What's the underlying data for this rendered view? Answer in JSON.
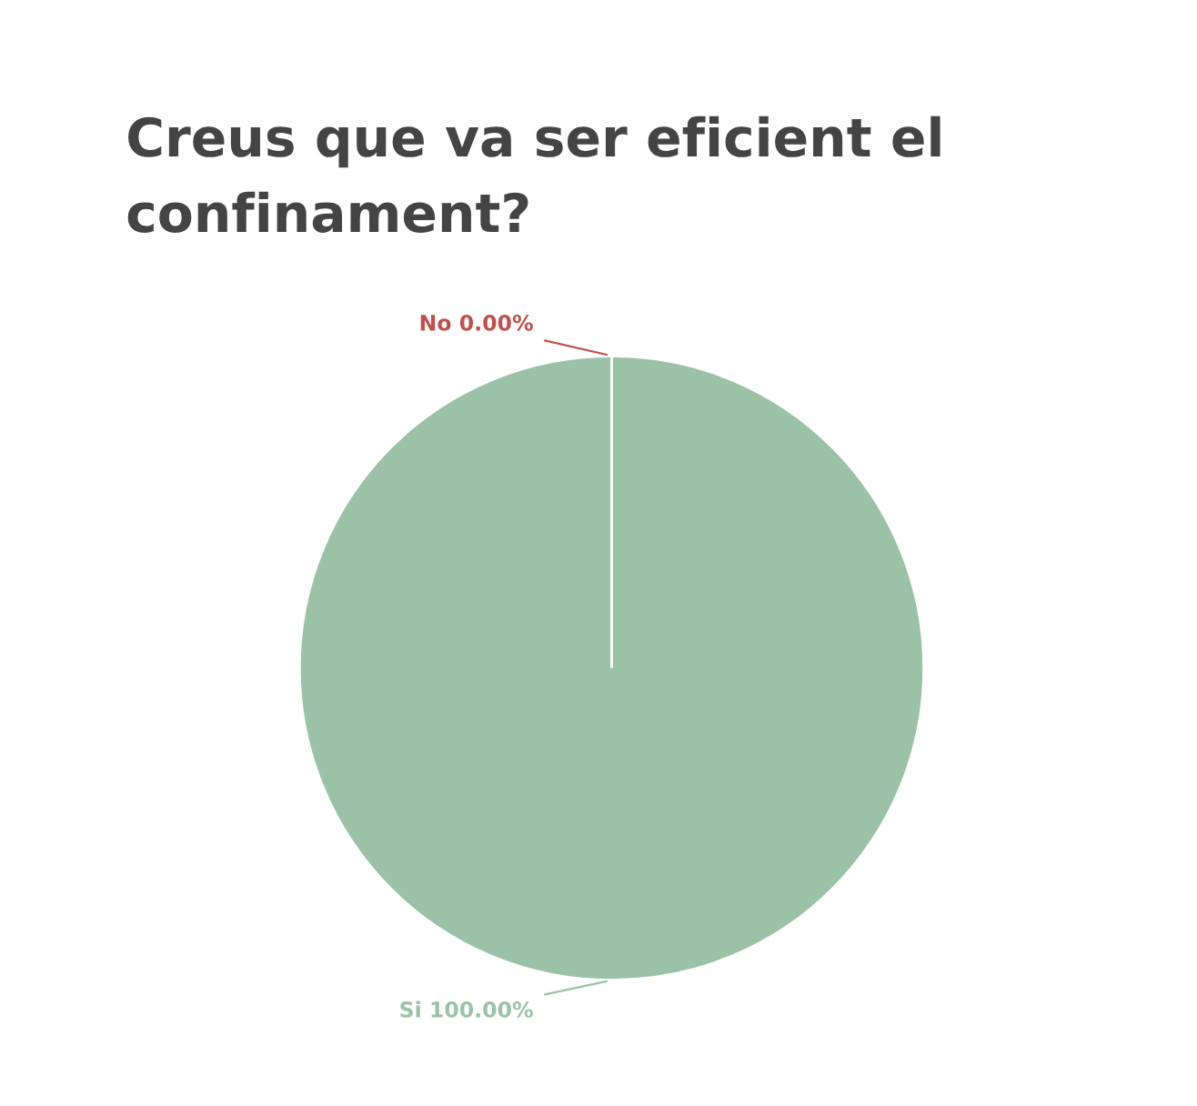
{
  "chart_data": {
    "type": "pie",
    "title": "Creus que va ser eficient el confinament?",
    "categories": [
      "Si",
      "No"
    ],
    "values": [
      100,
      0
    ],
    "value_labels": [
      "100.00%",
      "0.00%"
    ],
    "colors": [
      "#9bc2a7",
      "#c0504d"
    ],
    "legend": false
  }
}
